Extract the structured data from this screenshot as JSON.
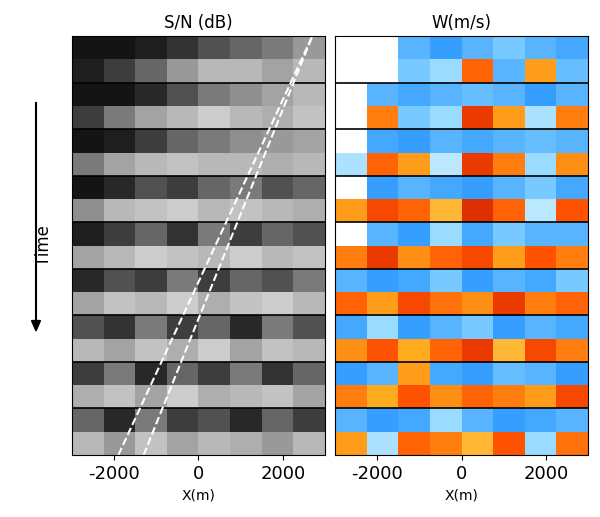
{
  "chart_data": [
    {
      "type": "heatmap",
      "title": "S/N (dB)",
      "xlabel": "X(m)",
      "ylabel": "Time",
      "xlim": [
        -3000,
        3000
      ],
      "xticks": [
        -2000,
        0,
        2000
      ],
      "ylim": [
        9,
        0
      ],
      "tick_labels": "x",
      "clim": [
        -30,
        -5
      ],
      "cells": [
        [
          [
            -28,
            -28,
            -27,
            -25,
            -22,
            -20,
            -18,
            -15
          ],
          [
            -27,
            -24,
            -20,
            -15,
            -12,
            -12,
            -14,
            -12
          ]
        ],
        [
          [
            -28,
            -28,
            -26,
            -22,
            -18,
            -16,
            -14,
            -12
          ],
          [
            -24,
            -18,
            -14,
            -12,
            -10,
            -12,
            -13,
            -11
          ]
        ],
        [
          [
            -28,
            -27,
            -24,
            -20,
            -18,
            -16,
            -15,
            -14
          ],
          [
            -18,
            -14,
            -12,
            -11,
            -12,
            -12,
            -13,
            -12
          ]
        ],
        [
          [
            -28,
            -26,
            -22,
            -24,
            -20,
            -18,
            -22,
            -20
          ],
          [
            -16,
            -12,
            -11,
            -10,
            -12,
            -11,
            -12,
            -13
          ]
        ],
        [
          [
            -27,
            -24,
            -20,
            -25,
            -18,
            -24,
            -20,
            -22
          ],
          [
            -14,
            -12,
            -10,
            -11,
            -12,
            -10,
            -12,
            -11
          ]
        ],
        [
          [
            -26,
            -22,
            -24,
            -18,
            -24,
            -20,
            -22,
            -18
          ],
          [
            -14,
            -11,
            -12,
            -10,
            -13,
            -11,
            -10,
            -12
          ]
        ],
        [
          [
            -22,
            -25,
            -18,
            -24,
            -20,
            -26,
            -18,
            -22
          ],
          [
            -12,
            -14,
            -11,
            -13,
            -10,
            -14,
            -11,
            -12
          ]
        ],
        [
          [
            -24,
            -18,
            -26,
            -20,
            -24,
            -18,
            -25,
            -20
          ],
          [
            -13,
            -11,
            -14,
            -10,
            -13,
            -12,
            -11,
            -14
          ]
        ],
        [
          [
            -20,
            -26,
            -18,
            -24,
            -22,
            -26,
            -20,
            -24
          ],
          [
            -12,
            -15,
            -11,
            -14,
            -12,
            -13,
            -15,
            -12
          ]
        ]
      ],
      "lines": [
        {
          "x": [
            -1900,
            2700
          ],
          "y": [
            9,
            0
          ],
          "color": "#ffffff",
          "line_style": "dashed"
        },
        {
          "x": [
            -1300,
            2700
          ],
          "y": [
            9,
            0
          ],
          "color": "#ffffff",
          "line_style": "dashed"
        }
      ]
    },
    {
      "type": "heatmap",
      "title": "W(m/s)",
      "xlabel": "X(m)",
      "xlim": [
        -3000,
        3000
      ],
      "xticks": [
        -2000,
        0,
        2000
      ],
      "ylim": [
        9,
        0
      ],
      "tick_labels": "x",
      "clim": [
        -2,
        2
      ],
      "cells": [
        [
          [
            null,
            null,
            -1.0,
            -1.2,
            -1.0,
            -0.8,
            -1.0,
            -1.1
          ],
          [
            null,
            null,
            -0.8,
            -0.6,
            1.2,
            -1.0,
            0.8,
            -0.9
          ]
        ],
        [
          [
            null,
            -1.0,
            -1.1,
            -1.0,
            -0.9,
            -1.0,
            -1.2,
            -1.0
          ],
          [
            null,
            1.0,
            -0.8,
            -0.6,
            1.5,
            0.8,
            -0.5,
            1.0
          ]
        ],
        [
          [
            null,
            -1.1,
            -1.2,
            -1.0,
            -1.1,
            -1.0,
            -0.9,
            -1.0
          ],
          [
            -0.5,
            1.2,
            0.8,
            -0.4,
            1.5,
            1.0,
            -0.6,
            0.9
          ]
        ],
        [
          [
            null,
            -1.2,
            -1.0,
            -1.1,
            -1.2,
            -1.0,
            -0.8,
            -1.1
          ],
          [
            0.8,
            1.4,
            1.2,
            0.6,
            1.6,
            1.2,
            -0.4,
            1.3
          ]
        ],
        [
          [
            null,
            -1.0,
            -1.2,
            -0.6,
            -1.1,
            -0.8,
            -1.0,
            -1.0
          ],
          [
            1.0,
            1.5,
            0.9,
            1.2,
            1.4,
            0.8,
            1.3,
            1.0
          ]
        ],
        [
          [
            -1.0,
            -1.2,
            -1.1,
            -0.8,
            -1.2,
            -1.0,
            -1.1,
            -0.8
          ],
          [
            1.2,
            0.8,
            1.4,
            1.1,
            0.9,
            1.5,
            1.0,
            1.2
          ]
        ],
        [
          [
            -1.1,
            -0.6,
            -1.2,
            -1.0,
            -0.8,
            -1.2,
            -1.0,
            -1.1
          ],
          [
            0.9,
            1.3,
            0.7,
            1.2,
            1.5,
            0.6,
            1.4,
            1.0
          ]
        ],
        [
          [
            -1.2,
            -1.0,
            0.8,
            -1.1,
            -1.2,
            -0.9,
            -1.0,
            -1.2
          ],
          [
            1.0,
            0.7,
            1.3,
            0.9,
            1.2,
            1.0,
            0.8,
            1.4
          ]
        ],
        [
          [
            -1.0,
            -1.2,
            -1.1,
            -0.6,
            -1.0,
            -1.2,
            -1.1,
            -1.0
          ],
          [
            0.8,
            -0.5,
            1.2,
            1.0,
            0.6,
            1.3,
            -0.6,
            1.1
          ]
        ]
      ]
    }
  ]
}
